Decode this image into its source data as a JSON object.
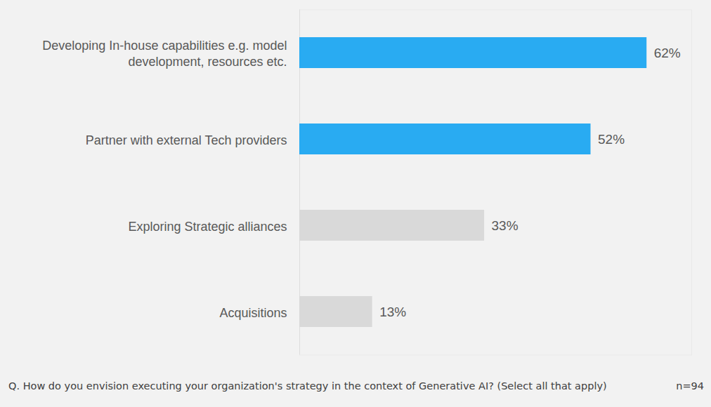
{
  "chart_data": {
    "type": "bar",
    "orientation": "horizontal",
    "categories": [
      "Developing In-house capabilities e.g. model\ndevelopment, resources etc.",
      "Partner with external Tech providers",
      "Exploring Strategic alliances",
      "Acquisitions"
    ],
    "values": [
      62,
      52,
      33,
      13
    ],
    "value_labels": [
      "62%",
      "52%",
      "33%",
      "13%"
    ],
    "colors": [
      "#29abf2",
      "#29abf2",
      "#d9d9d9",
      "#d9d9d9"
    ],
    "xlim": [
      0,
      70
    ],
    "data_labels": true,
    "tick_labels": "y",
    "grid": false,
    "caption": "Q. How do you envision executing your organization's strategy in the context of Generative AI? (Select all that apply)",
    "annotations": [
      "n=94"
    ]
  }
}
